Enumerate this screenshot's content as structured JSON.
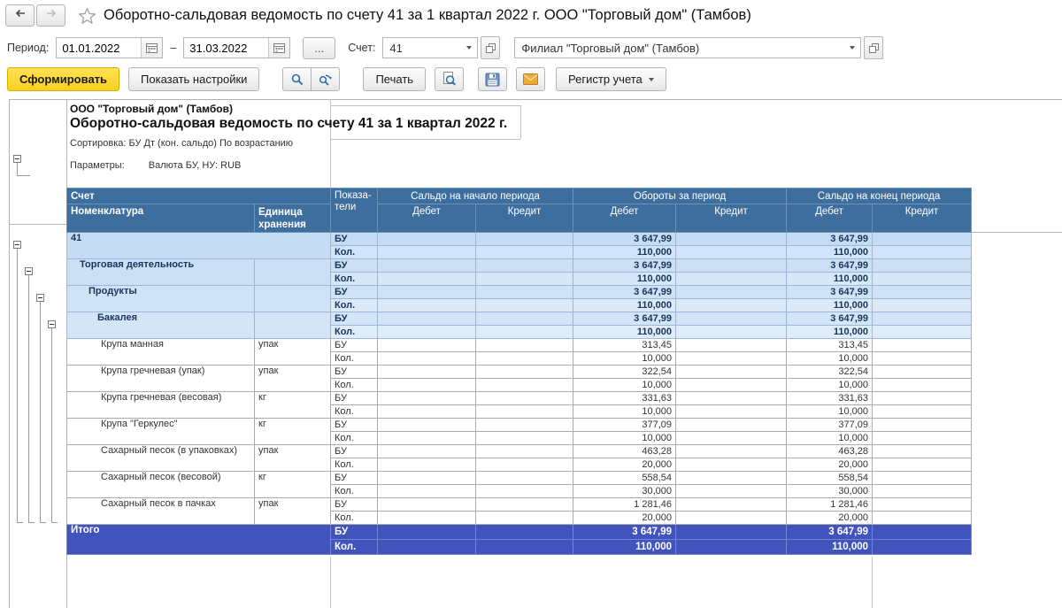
{
  "titlebar": {
    "title": "Оборотно-сальдовая ведомость по счету 41 за 1 квартал 2022 г. ООО \"Торговый дом\" (Тамбов)"
  },
  "filters": {
    "period_label": "Период:",
    "date_from": "01.01.2022",
    "dash": "–",
    "date_to": "31.03.2022",
    "more_button": "...",
    "account_label": "Счет:",
    "account_value": "41",
    "branch_value": "Филиал \"Торговый дом\" (Тамбов)"
  },
  "toolbar": {
    "generate": "Сформировать",
    "show_settings": "Показать настройки",
    "print": "Печать",
    "register": "Регистр учета"
  },
  "report": {
    "company": "ООО \"Торговый дом\" (Тамбов)",
    "title": "Оборотно-сальдовая ведомость по счету 41 за 1 квартал 2022 г.",
    "sorting": "Сортировка: БУ Дт (кон. сальдо) По возрастанию",
    "params_label": "Параметры:",
    "params_value": "Валюта БУ, НУ: RUB"
  },
  "table": {
    "headers": {
      "account": "Счет",
      "nomenclature": "Номенклатура",
      "unit": "Единица\nхранения",
      "indicators": "Показа-\nтели",
      "opening": "Сальдо на начало периода",
      "turnover": "Обороты за период",
      "closing": "Сальдо на конец периода",
      "debit": "Дебет",
      "credit": "Кредит"
    },
    "indicator_labels": {
      "bu": "БУ",
      "kol": "Кол."
    },
    "rows": [
      {
        "label": "41",
        "unit": "",
        "level": 0,
        "group": true,
        "merge_unit": true,
        "bu_values": [
          "",
          "",
          "3 647,99",
          "",
          "3 647,99",
          ""
        ],
        "kol_values": [
          "",
          "",
          "110,000",
          "",
          "110,000",
          ""
        ]
      },
      {
        "label": "Торговая деятельность",
        "unit": "",
        "level": 1,
        "group": true,
        "merge_unit": false,
        "bu_values": [
          "",
          "",
          "3 647,99",
          "",
          "3 647,99",
          ""
        ],
        "kol_values": [
          "",
          "",
          "110,000",
          "",
          "110,000",
          ""
        ]
      },
      {
        "label": "Продукты",
        "unit": "",
        "level": 2,
        "group": true,
        "merge_unit": false,
        "bu_values": [
          "",
          "",
          "3 647,99",
          "",
          "3 647,99",
          ""
        ],
        "kol_values": [
          "",
          "",
          "110,000",
          "",
          "110,000",
          ""
        ]
      },
      {
        "label": "Бакалея",
        "unit": "",
        "level": 3,
        "group": true,
        "merge_unit": false,
        "bu_values": [
          "",
          "",
          "3 647,99",
          "",
          "3 647,99",
          ""
        ],
        "kol_values": [
          "",
          "",
          "110,000",
          "",
          "110,000",
          ""
        ]
      },
      {
        "label": "Крупа манная",
        "unit": "упак",
        "level": 4,
        "group": false,
        "merge_unit": false,
        "bu_values": [
          "",
          "",
          "313,45",
          "",
          "313,45",
          ""
        ],
        "kol_values": [
          "",
          "",
          "10,000",
          "",
          "10,000",
          ""
        ]
      },
      {
        "label": "Крупа гречневая (упак)",
        "unit": "упак",
        "level": 4,
        "group": false,
        "merge_unit": false,
        "bu_values": [
          "",
          "",
          "322,54",
          "",
          "322,54",
          ""
        ],
        "kol_values": [
          "",
          "",
          "10,000",
          "",
          "10,000",
          ""
        ]
      },
      {
        "label": "Крупа гречневая (весовая)",
        "unit": "кг",
        "level": 4,
        "group": false,
        "merge_unit": false,
        "bu_values": [
          "",
          "",
          "331,63",
          "",
          "331,63",
          ""
        ],
        "kol_values": [
          "",
          "",
          "10,000",
          "",
          "10,000",
          ""
        ]
      },
      {
        "label": "Крупа \"Геркулес\"",
        "unit": "кг",
        "level": 4,
        "group": false,
        "merge_unit": false,
        "bu_values": [
          "",
          "",
          "377,09",
          "",
          "377,09",
          ""
        ],
        "kol_values": [
          "",
          "",
          "10,000",
          "",
          "10,000",
          ""
        ]
      },
      {
        "label": "Сахарный песок (в упаковках)",
        "unit": "упак",
        "level": 4,
        "group": false,
        "merge_unit": false,
        "bu_values": [
          "",
          "",
          "463,28",
          "",
          "463,28",
          ""
        ],
        "kol_values": [
          "",
          "",
          "20,000",
          "",
          "20,000",
          ""
        ]
      },
      {
        "label": "Сахарный песок (весовой)",
        "unit": "кг",
        "level": 4,
        "group": false,
        "merge_unit": false,
        "bu_values": [
          "",
          "",
          "558,54",
          "",
          "558,54",
          ""
        ],
        "kol_values": [
          "",
          "",
          "30,000",
          "",
          "30,000",
          ""
        ]
      },
      {
        "label": "Сахарный песок в пачках",
        "unit": "упак",
        "level": 4,
        "group": false,
        "merge_unit": false,
        "bu_values": [
          "",
          "",
          "1 281,46",
          "",
          "1 281,46",
          ""
        ],
        "kol_values": [
          "",
          "",
          "20,000",
          "",
          "20,000",
          ""
        ]
      }
    ],
    "total": {
      "label": "Итого",
      "bu_values": [
        "",
        "",
        "3 647,99",
        "",
        "3 647,99",
        ""
      ],
      "kol_values": [
        "",
        "",
        "110,000",
        "",
        "110,000",
        ""
      ]
    }
  }
}
